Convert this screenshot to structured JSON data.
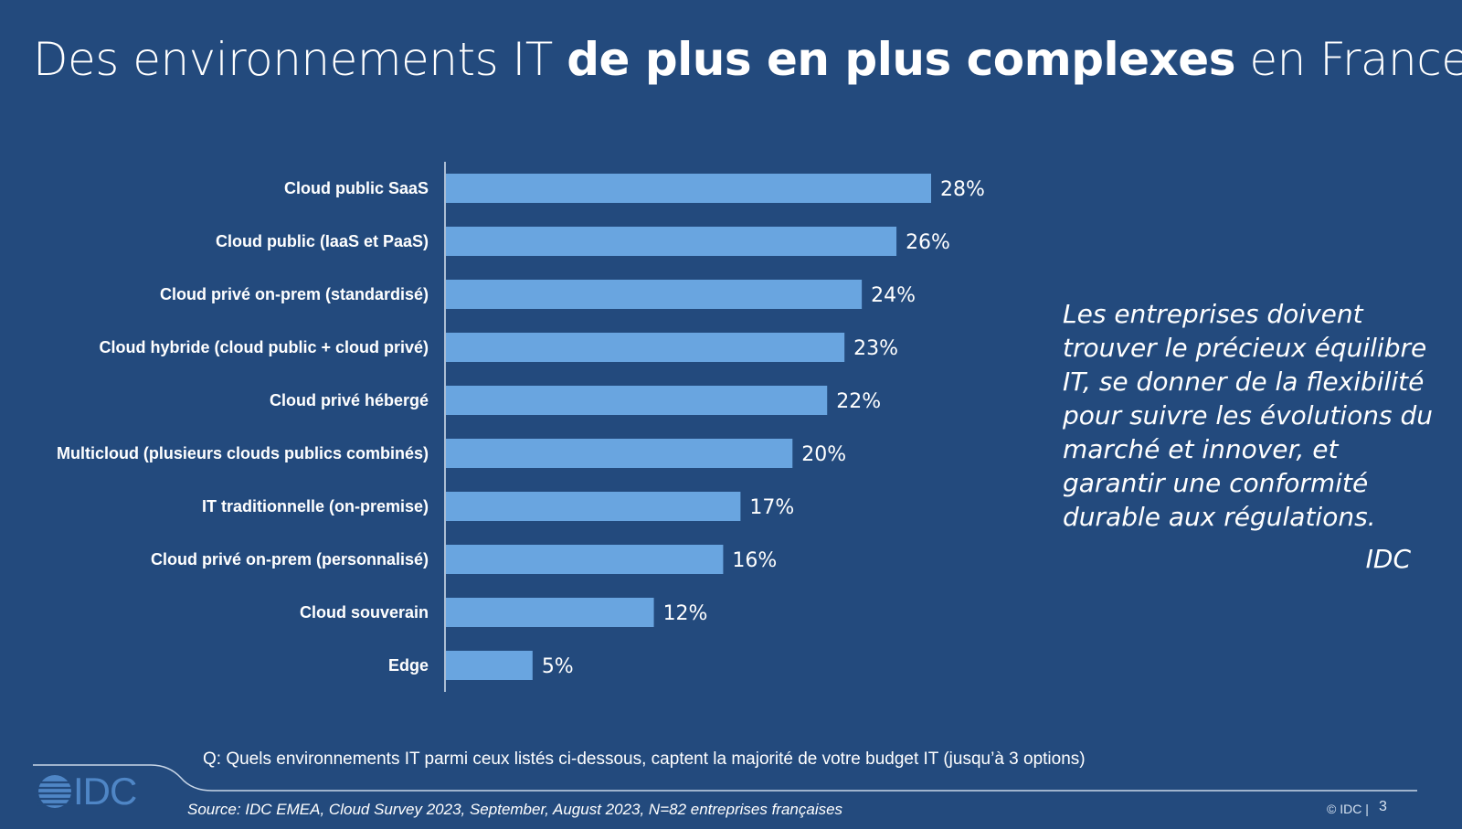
{
  "title": {
    "part1": "Des environnements IT ",
    "part2": "de plus en plus complexes",
    "part3": " en France"
  },
  "chart_data": {
    "type": "bar",
    "orientation": "horizontal",
    "categories": [
      "Cloud public SaaS",
      "Cloud public (IaaS et PaaS)",
      "Cloud privé on-prem (standardisé)",
      "Cloud hybride (cloud public + cloud privé)",
      "Cloud privé hébergé",
      "Multicloud (plusieurs clouds publics combinés)",
      "IT traditionnelle (on-premise)",
      "Cloud privé on-prem (personnalisé)",
      "Cloud souverain",
      "Edge"
    ],
    "values": [
      28,
      26,
      24,
      23,
      22,
      20,
      17,
      16,
      12,
      5
    ],
    "value_labels": [
      "28%",
      "26%",
      "24%",
      "23%",
      "22%",
      "20%",
      "17%",
      "16%",
      "12%",
      "5%"
    ],
    "unit": "%",
    "bar_color": "#69a5e0",
    "grid": false
  },
  "quote": {
    "text": "Les entreprises doivent trouver le précieux équilibre IT, se donner de la flexibilité pour suivre les évolutions du marché et innover, et garantir une conformité durable aux régulations.",
    "attribution": "IDC"
  },
  "question": "Q: Quels environnements IT parmi ceux listés ci-dessous, captent la majorité de votre budget IT (jusqu’à 3 options)",
  "source": "Source: IDC EMEA, Cloud Survey 2023, September, August 2023, N=82 entreprises françaises",
  "footer": {
    "logo": "IDC",
    "copyright": "© IDC |",
    "page_number": "3"
  },
  "colors": {
    "background": "#234a7d",
    "bar": "#69a5e0",
    "logo": "#4f86c6"
  }
}
